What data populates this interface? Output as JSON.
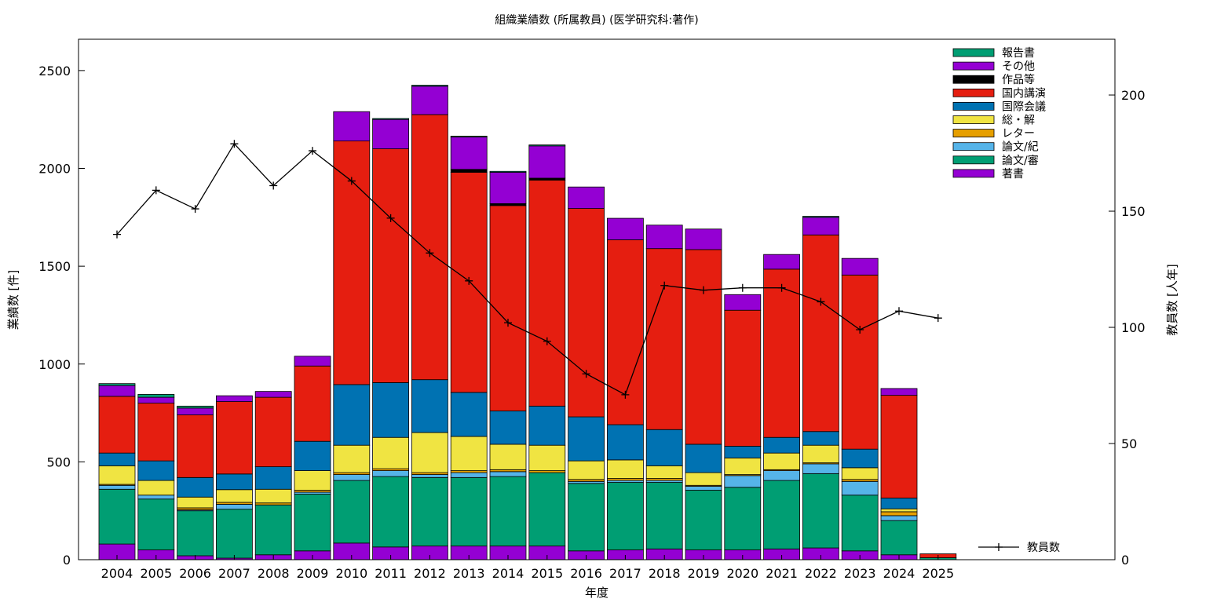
{
  "chart_data": {
    "type": "bar",
    "stacked": true,
    "title": "組織業績数 (所属教員) (医学研究科:著作)",
    "xlabel": "年度",
    "ylabel": "業績数 [件]",
    "y2label": "教員数 [人年]",
    "ylim": [
      0,
      2660
    ],
    "y2lim": [
      0,
      224
    ],
    "yticks": [
      0,
      500,
      1000,
      1500,
      2000,
      2500
    ],
    "y2ticks": [
      0,
      50,
      100,
      150,
      200
    ],
    "grid": false,
    "legend_position": "top-right",
    "categories": [
      "2004",
      "2005",
      "2006",
      "2007",
      "2008",
      "2009",
      "2010",
      "2011",
      "2012",
      "2013",
      "2014",
      "2015",
      "2016",
      "2017",
      "2018",
      "2019",
      "2020",
      "2021",
      "2022",
      "2023",
      "2024",
      "2025"
    ],
    "series": [
      {
        "name": "著書",
        "color": "#9400d3",
        "values": [
          80,
          50,
          20,
          8,
          25,
          45,
          85,
          65,
          70,
          70,
          70,
          70,
          45,
          50,
          55,
          50,
          50,
          55,
          60,
          45,
          25,
          0
        ]
      },
      {
        "name": "論文/審",
        "color": "#009e73",
        "values": [
          280,
          260,
          230,
          250,
          255,
          290,
          320,
          360,
          350,
          350,
          355,
          375,
          345,
          345,
          340,
          305,
          320,
          350,
          380,
          285,
          175,
          10
        ]
      },
      {
        "name": "論文/紀",
        "color": "#56b4e9",
        "values": [
          20,
          20,
          5,
          25,
          0,
          10,
          30,
          30,
          15,
          25,
          25,
          0,
          10,
          10,
          10,
          20,
          60,
          50,
          50,
          70,
          25,
          0
        ]
      },
      {
        "name": "レター",
        "color": "#e69f00",
        "values": [
          5,
          0,
          10,
          10,
          10,
          10,
          10,
          10,
          10,
          10,
          10,
          10,
          10,
          10,
          10,
          5,
          5,
          5,
          5,
          10,
          20,
          0
        ]
      },
      {
        "name": "総・解",
        "color": "#f0e442",
        "values": [
          95,
          75,
          55,
          65,
          70,
          100,
          140,
          160,
          205,
          175,
          130,
          130,
          95,
          95,
          65,
          65,
          85,
          85,
          90,
          60,
          15,
          0
        ]
      },
      {
        "name": "国際会議",
        "color": "#0072b2",
        "values": [
          65,
          100,
          100,
          80,
          115,
          150,
          310,
          280,
          270,
          225,
          170,
          200,
          225,
          180,
          185,
          145,
          60,
          80,
          70,
          95,
          55,
          0
        ]
      },
      {
        "name": "国内講演",
        "color": "#e51e10",
        "values": [
          290,
          295,
          320,
          370,
          355,
          385,
          1245,
          1195,
          1355,
          1125,
          1050,
          1155,
          1065,
          945,
          925,
          995,
          695,
          860,
          1005,
          890,
          525,
          20
        ]
      },
      {
        "name": "作品等",
        "color": "#000000",
        "values": [
          0,
          0,
          0,
          0,
          0,
          0,
          0,
          0,
          0,
          15,
          10,
          10,
          0,
          0,
          0,
          0,
          0,
          0,
          0,
          0,
          0,
          0
        ]
      },
      {
        "name": "その他",
        "color": "#9400d3",
        "values": [
          55,
          30,
          35,
          30,
          30,
          50,
          150,
          150,
          145,
          165,
          160,
          165,
          110,
          110,
          120,
          105,
          80,
          75,
          90,
          85,
          35,
          0
        ]
      },
      {
        "name": "報告書",
        "color": "#009e73",
        "values": [
          10,
          15,
          10,
          0,
          0,
          0,
          0,
          5,
          5,
          5,
          5,
          5,
          0,
          0,
          0,
          0,
          0,
          0,
          5,
          0,
          0,
          0
        ]
      }
    ],
    "line": {
      "name": "教員数",
      "color": "#000000",
      "axis": "y2",
      "values": [
        140,
        159,
        151,
        179,
        161,
        176,
        163,
        147,
        132,
        120,
        102,
        94,
        80,
        71,
        118,
        116,
        117,
        117,
        111,
        99,
        107,
        104
      ]
    }
  }
}
